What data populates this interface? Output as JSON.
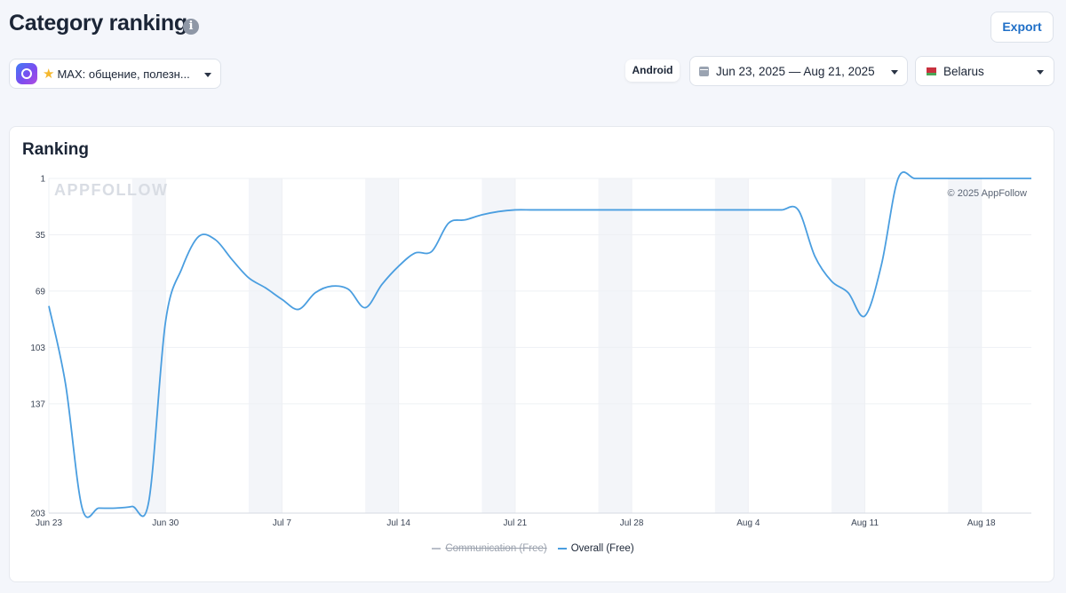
{
  "header": {
    "title": "Category ranking",
    "info_icon": "info-icon",
    "export_label": "Export"
  },
  "filters": {
    "app_name": "MAX: общение, полезн...",
    "platform": "Android",
    "date_range": "Jun 23, 2025 — Aug 21, 2025",
    "country": "Belarus"
  },
  "card": {
    "title": "Ranking",
    "watermark": "APPFOLLOW",
    "copyright": "© 2025 AppFollow"
  },
  "colors": {
    "accent": "#1f6fc7",
    "line": "#4a9ee0",
    "weekend_band": "#f3f5f9"
  },
  "chart_data": {
    "type": "line",
    "y_reversed": true,
    "ylim": [
      1,
      203
    ],
    "yticks": [
      "1",
      "35",
      "69",
      "103",
      "137",
      "203"
    ],
    "yticks_values": [
      1,
      35,
      69,
      103,
      137,
      203
    ],
    "x_labels": [
      "Jun 23",
      "Jun 30",
      "Jul 7",
      "Jul 14",
      "Jul 21",
      "Jul 28",
      "Aug 4",
      "Aug 11",
      "Aug 18"
    ],
    "x_start": "2025-06-23",
    "x_end": "2025-08-21",
    "legend_position": "bottom-center",
    "series": [
      {
        "name": "Overall (Free)",
        "visible": true,
        "x": [
          "2025-06-23",
          "2025-06-24",
          "2025-06-25",
          "2025-06-26",
          "2025-06-27",
          "2025-06-28",
          "2025-06-29",
          "2025-06-30",
          "2025-07-01",
          "2025-07-02",
          "2025-07-03",
          "2025-07-04",
          "2025-07-05",
          "2025-07-06",
          "2025-07-07",
          "2025-07-08",
          "2025-07-09",
          "2025-07-10",
          "2025-07-11",
          "2025-07-12",
          "2025-07-13",
          "2025-07-14",
          "2025-07-15",
          "2025-07-16",
          "2025-07-17",
          "2025-07-18",
          "2025-07-19",
          "2025-07-20",
          "2025-07-21",
          "2025-07-22",
          "2025-07-23",
          "2025-07-24",
          "2025-07-25",
          "2025-07-26",
          "2025-07-27",
          "2025-07-28",
          "2025-07-29",
          "2025-07-30",
          "2025-07-31",
          "2025-08-01",
          "2025-08-02",
          "2025-08-03",
          "2025-08-04",
          "2025-08-05",
          "2025-08-06",
          "2025-08-07",
          "2025-08-08",
          "2025-08-09",
          "2025-08-10",
          "2025-08-11",
          "2025-08-12",
          "2025-08-13",
          "2025-08-14",
          "2025-08-15",
          "2025-08-16",
          "2025-08-17",
          "2025-08-18",
          "2025-08-19",
          "2025-08-20",
          "2025-08-21"
        ],
        "y": [
          78,
          125,
          200,
          200,
          200,
          199,
          196,
          88,
          55,
          36,
          38,
          50,
          61,
          67,
          74,
          80,
          70,
          66,
          68,
          79,
          65,
          54,
          46,
          45,
          28,
          26,
          23,
          21,
          20,
          20,
          20,
          20,
          20,
          20,
          20,
          20,
          20,
          20,
          20,
          20,
          20,
          20,
          20,
          20,
          20,
          20,
          48,
          63,
          70,
          84,
          53,
          1,
          1,
          1,
          1,
          1,
          1,
          1,
          1,
          1
        ]
      },
      {
        "name": "Communication (Free)",
        "visible": false,
        "x": [],
        "y": []
      }
    ]
  }
}
